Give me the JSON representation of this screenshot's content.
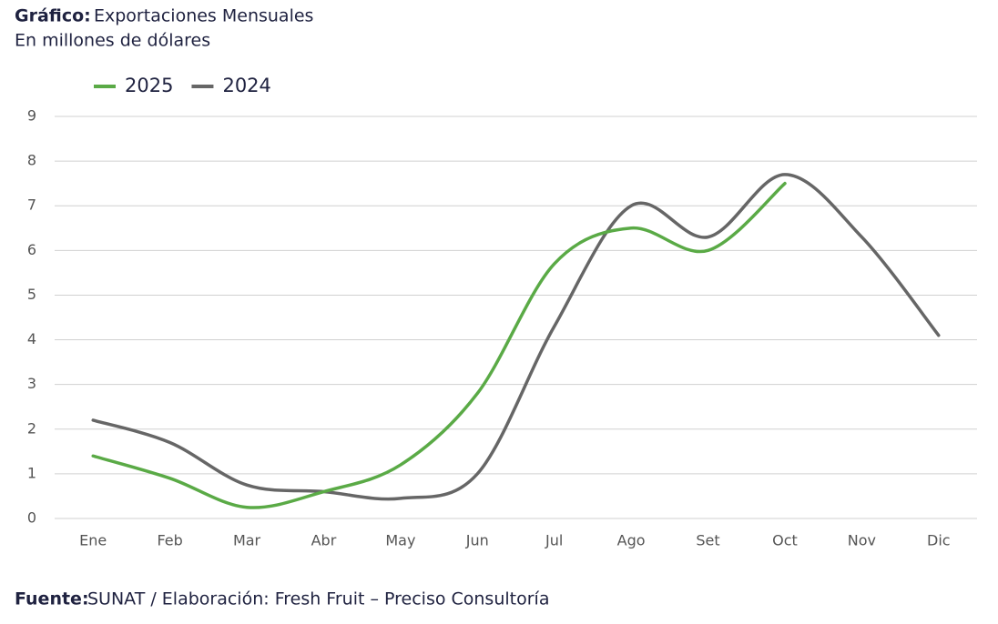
{
  "chart_data": {
    "type": "line",
    "title_label": "Gráfico:",
    "title": "Exportaciones Mensuales",
    "subtitle": "En millones de dólares",
    "source_label": "Fuente:",
    "source": "SUNAT / Elaboración: Fresh Fruit – Preciso Consultoría",
    "categories": [
      "Ene",
      "Feb",
      "Mar",
      "Abr",
      "May",
      "Jun",
      "Jul",
      "Ago",
      "Set",
      "Oct",
      "Nov",
      "Dic"
    ],
    "series": [
      {
        "name": "2025",
        "color": "#5aaa46",
        "values": [
          1.4,
          0.9,
          0.25,
          0.6,
          1.2,
          2.8,
          5.7,
          6.5,
          6.0,
          7.5,
          null,
          null
        ]
      },
      {
        "name": "2024",
        "color": "#666666",
        "values": [
          2.2,
          1.7,
          0.75,
          0.6,
          0.45,
          1.0,
          4.3,
          7.0,
          6.3,
          7.7,
          6.3,
          4.1
        ]
      }
    ],
    "ylim": [
      0,
      9
    ],
    "yticks": [
      0,
      1,
      2,
      3,
      4,
      5,
      6,
      7,
      8,
      9
    ],
    "grid": true,
    "smooth": true,
    "legend": "top-left"
  }
}
